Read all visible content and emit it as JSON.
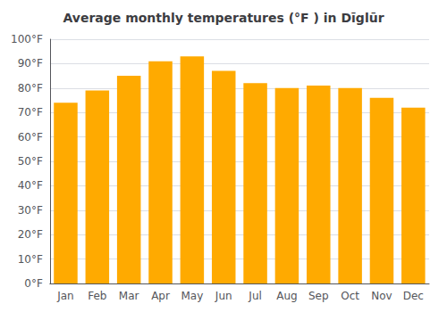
{
  "chart_data": {
    "type": "bar",
    "title": "Average monthly temperatures (°F ) in Dīglūr",
    "categories": [
      "Jan",
      "Feb",
      "Mar",
      "Apr",
      "May",
      "Jun",
      "Jul",
      "Aug",
      "Sep",
      "Oct",
      "Nov",
      "Dec"
    ],
    "values": [
      74,
      79,
      85,
      91,
      93,
      87,
      82,
      80,
      81,
      80,
      76,
      72
    ],
    "color": "#FFAA00",
    "ylim": [
      0,
      100
    ],
    "yticks": [
      {
        "value": 0,
        "label": "0°F"
      },
      {
        "value": 10,
        "label": "10°F"
      },
      {
        "value": 20,
        "label": "20°F"
      },
      {
        "value": 30,
        "label": "30°F"
      },
      {
        "value": 40,
        "label": "40°F"
      },
      {
        "value": 50,
        "label": "50°F"
      },
      {
        "value": 60,
        "label": "60°F"
      },
      {
        "value": 70,
        "label": "70°F"
      },
      {
        "value": 80,
        "label": "80°F"
      },
      {
        "value": 90,
        "label": "90°F"
      },
      {
        "value": 100,
        "label": "100°F"
      }
    ],
    "grid": true
  }
}
